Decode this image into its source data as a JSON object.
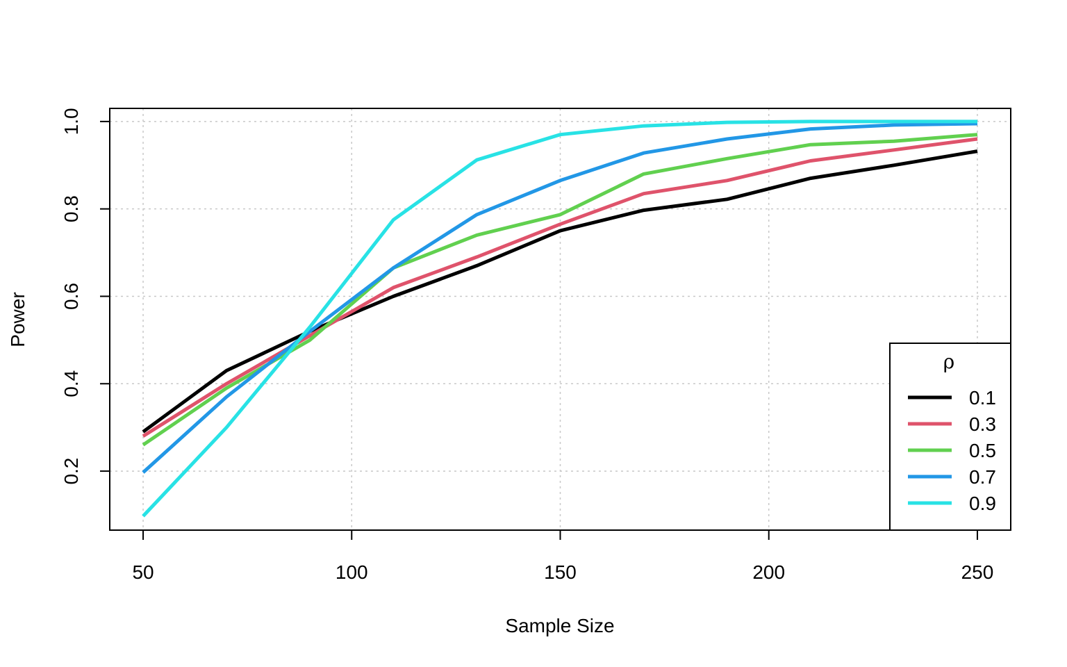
{
  "chart_data": {
    "type": "line",
    "title": "",
    "xlabel": "Sample Size",
    "ylabel": "Power",
    "xlim": [
      42,
      258
    ],
    "ylim": [
      0.065,
      1.03
    ],
    "x_ticks": [
      50,
      100,
      150,
      200,
      250
    ],
    "x_tick_labels": [
      "50",
      "100",
      "150",
      "200",
      "250"
    ],
    "y_ticks": [
      0.2,
      0.4,
      0.6,
      0.8,
      1.0
    ],
    "y_tick_labels": [
      "0.2",
      "0.4",
      "0.6",
      "0.8",
      "1.0"
    ],
    "grid": true,
    "x": [
      50,
      70,
      90,
      110,
      130,
      150,
      170,
      190,
      210,
      230,
      250
    ],
    "legend": {
      "title": "ρ",
      "position": "bottom-right"
    },
    "series": [
      {
        "name": "0.1",
        "color": "#000000",
        "values": [
          0.29,
          0.43,
          0.52,
          0.6,
          0.67,
          0.75,
          0.797,
          0.822,
          0.87,
          0.9,
          0.932
        ]
      },
      {
        "name": "0.3",
        "color": "#DF536B",
        "values": [
          0.28,
          0.4,
          0.51,
          0.62,
          0.69,
          0.765,
          0.835,
          0.865,
          0.91,
          0.935,
          0.96
        ]
      },
      {
        "name": "0.5",
        "color": "#61D04F",
        "values": [
          0.26,
          0.39,
          0.5,
          0.665,
          0.74,
          0.787,
          0.88,
          0.915,
          0.947,
          0.955,
          0.97
        ]
      },
      {
        "name": "0.7",
        "color": "#2297E6",
        "values": [
          0.197,
          0.37,
          0.52,
          0.665,
          0.787,
          0.865,
          0.928,
          0.96,
          0.983,
          0.992,
          0.995
        ]
      },
      {
        "name": "0.9",
        "color": "#28E2E5",
        "values": [
          0.097,
          0.3,
          0.53,
          0.775,
          0.912,
          0.97,
          0.99,
          0.998,
          1.0,
          1.0,
          1.0
        ]
      }
    ]
  }
}
